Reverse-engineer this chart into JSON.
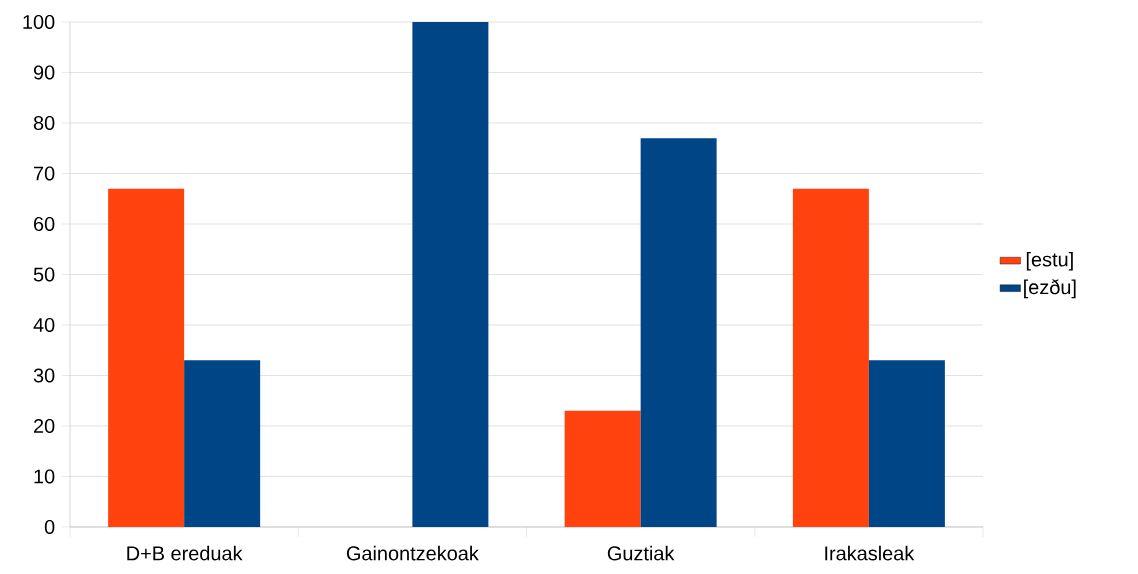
{
  "chart_data": {
    "type": "bar",
    "categories": [
      "D+B ereduak",
      "Gainontzekoak",
      "Guztiak",
      "Irakasleak"
    ],
    "series": [
      {
        "name": "[estu]",
        "color": "#ff420e",
        "values": [
          67,
          0,
          23,
          67
        ]
      },
      {
        "name": "[ezðu]",
        "color": "#004586",
        "values": [
          33,
          100,
          77,
          33
        ]
      }
    ],
    "ylim": [
      0,
      100
    ],
    "yticks": [
      0,
      10,
      20,
      30,
      40,
      50,
      60,
      70,
      80,
      90,
      100
    ],
    "grid": "y",
    "legend": "right"
  }
}
